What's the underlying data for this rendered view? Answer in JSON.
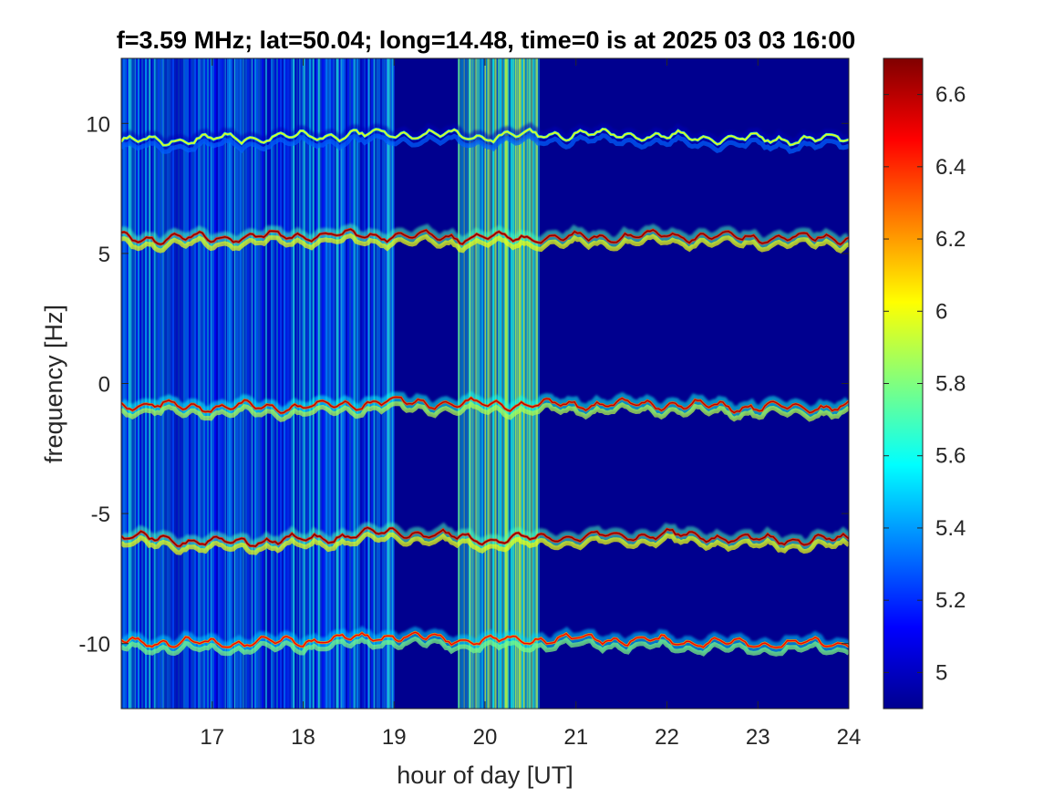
{
  "chart_data": {
    "type": "heatmap",
    "title": "f=3.59 MHz;  lat=50.04; long=14.48, time=0 is at 2025 03 03 16:00",
    "xlabel": "hour of day [UT]",
    "ylabel": "frequency [Hz]",
    "xlim": [
      16.0,
      24.0
    ],
    "ylim": [
      -12.5,
      12.5
    ],
    "xticks": [
      17,
      18,
      19,
      20,
      21,
      22,
      23,
      24
    ],
    "xtick_labels": [
      "17",
      "18",
      "19",
      "20",
      "21",
      "22",
      "23",
      "24"
    ],
    "yticks": [
      10,
      5,
      0,
      -5,
      -10
    ],
    "ytick_labels": [
      "10",
      "5",
      "0",
      "-5",
      "-10"
    ],
    "colorbar": {
      "range": [
        4.9,
        6.7
      ],
      "ticks": [
        6.6,
        6.4,
        6.2,
        6.0,
        5.8,
        5.6,
        5.4,
        5.2,
        5.0
      ],
      "tick_labels": [
        "6.6",
        "6.4",
        "6.2",
        "6",
        "5.8",
        "5.6",
        "5.4",
        "5.2",
        "5"
      ],
      "colormap": "jet"
    },
    "traces": [
      {
        "label": "trace near +10 Hz",
        "x": [
          16.0,
          17.0,
          18.0,
          19.0,
          20.0,
          21.0,
          22.0,
          23.0,
          24.0
        ],
        "y": [
          9.3,
          9.4,
          9.5,
          9.6,
          9.5,
          9.6,
          9.5,
          9.4,
          9.4
        ],
        "peak_level": 6.0
      },
      {
        "label": "trace near +5.5 Hz",
        "x": [
          16.0,
          17.0,
          18.0,
          19.0,
          20.0,
          21.0,
          22.0,
          23.0,
          24.0
        ],
        "y": [
          5.6,
          5.6,
          5.7,
          5.7,
          5.6,
          5.6,
          5.7,
          5.6,
          5.6
        ],
        "peak_level": 6.7
      },
      {
        "label": "trace near -1 Hz",
        "x": [
          16.0,
          17.0,
          18.0,
          19.0,
          20.0,
          21.0,
          22.0,
          23.0,
          24.0
        ],
        "y": [
          -0.8,
          -0.9,
          -0.9,
          -0.7,
          -0.8,
          -0.8,
          -0.8,
          -0.9,
          -0.9
        ],
        "peak_level": 6.6
      },
      {
        "label": "trace near -6 Hz",
        "x": [
          16.0,
          17.0,
          18.0,
          19.0,
          20.0,
          21.0,
          22.0,
          23.0,
          24.0
        ],
        "y": [
          -5.9,
          -6.1,
          -6.0,
          -5.7,
          -6.0,
          -5.9,
          -5.8,
          -6.0,
          -6.0
        ],
        "peak_level": 6.7
      },
      {
        "label": "trace near -10 Hz",
        "x": [
          16.0,
          17.0,
          18.0,
          19.0,
          20.0,
          21.0,
          22.0,
          23.0,
          24.0
        ],
        "y": [
          -9.9,
          -10.0,
          -9.9,
          -9.7,
          -9.9,
          -9.8,
          -9.9,
          -10.0,
          -10.0
        ],
        "peak_level": 6.5
      }
    ],
    "noise_regions": [
      {
        "x_range": [
          16.0,
          19.0
        ],
        "level": 5.3
      },
      {
        "x_range": [
          19.7,
          20.6
        ],
        "level": 5.6
      }
    ],
    "background_level": 4.9,
    "grid": false
  }
}
